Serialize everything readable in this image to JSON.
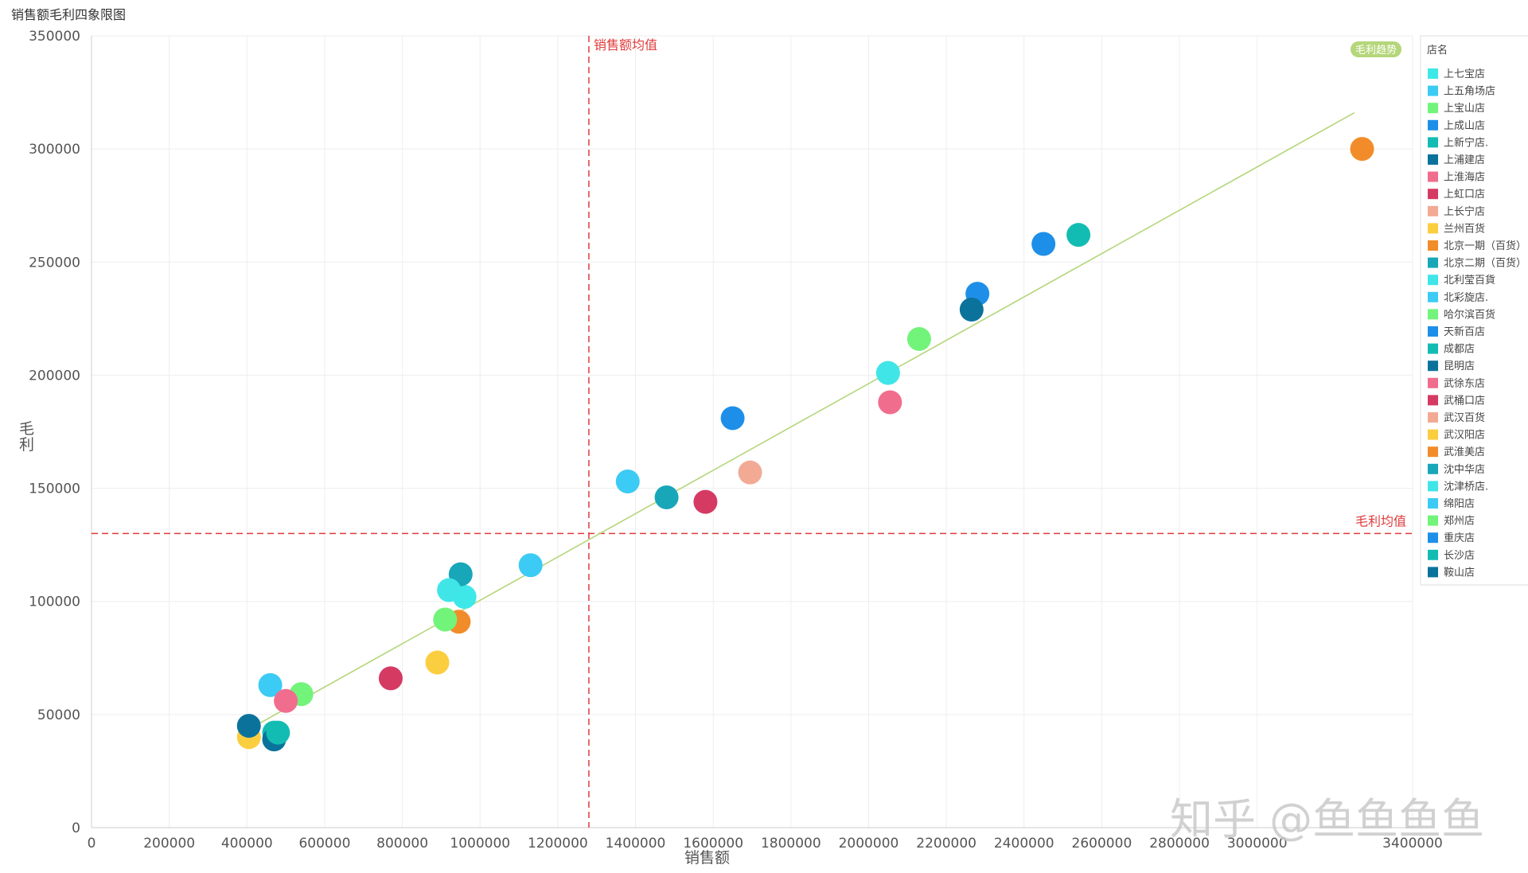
{
  "chart_data": {
    "type": "scatter",
    "title": "销售额毛利四象限图",
    "xlabel": "销售额",
    "ylabel": "毛利",
    "xlim": [
      0,
      3400000
    ],
    "ylim": [
      0,
      350000
    ],
    "x_ticks": [
      "0",
      "200000",
      "400000",
      "600000",
      "800000",
      "1000000",
      "1200000",
      "1400000",
      "1600000",
      "1800000",
      "2000000",
      "2200000",
      "2400000",
      "2600000",
      "2800000",
      "3000000",
      "3400000"
    ],
    "x_tick_values": [
      0,
      200000,
      400000,
      600000,
      800000,
      1000000,
      1200000,
      1400000,
      1600000,
      1800000,
      2000000,
      2200000,
      2400000,
      2600000,
      2800000,
      3000000,
      3400000
    ],
    "y_ticks": [
      "0",
      "50000",
      "100000",
      "150000",
      "200000",
      "250000",
      "300000",
      "350000"
    ],
    "y_tick_values": [
      0,
      50000,
      100000,
      150000,
      200000,
      250000,
      300000,
      350000
    ],
    "grid": true,
    "mean_lines": {
      "x_mean": 1280000,
      "x_mean_label": "销售额均值",
      "y_mean": 130000,
      "y_mean_label": "毛利均值",
      "color": "#e03b3b"
    },
    "trend": {
      "label": "毛利趋势",
      "color": "#b5d67a",
      "x": [
        400000,
        3250000
      ],
      "y": [
        43000,
        316000
      ]
    },
    "legend": {
      "title": "店名",
      "position": "right"
    },
    "series": [
      {
        "name": "上七宝店",
        "color": "#3ee8e8",
        "points": [
          [
            960000,
            102000
          ]
        ]
      },
      {
        "name": "上五角场店",
        "color": "#3ccbf5",
        "points": [
          [
            460000,
            63000
          ]
        ]
      },
      {
        "name": "上宝山店",
        "color": "#72f47a",
        "points": [
          [
            540000,
            59000
          ]
        ]
      },
      {
        "name": "上成山店",
        "color": "#1e8fe8",
        "points": [
          [
            2280000,
            236000
          ]
        ]
      },
      {
        "name": "上新宁店.",
        "color": "#13bcb3",
        "points": [
          [
            470000,
            42000
          ]
        ]
      },
      {
        "name": "上浦建店",
        "color": "#0b739b",
        "points": [
          [
            2265000,
            229000
          ]
        ]
      },
      {
        "name": "上淮海店",
        "color": "#f16d8e",
        "points": [
          [
            2055000,
            188000
          ]
        ]
      },
      {
        "name": "上虹口店",
        "color": "#d53a63",
        "points": [
          [
            770000,
            66000
          ]
        ]
      },
      {
        "name": "上长宁店",
        "color": "#f2aa95",
        "points": [
          [
            1695000,
            157000
          ]
        ]
      },
      {
        "name": "兰州百货",
        "color": "#fbce3f",
        "points": [
          [
            890000,
            73000
          ]
        ]
      },
      {
        "name": "北京一期（百货）",
        "color": "#f28c2a",
        "points": [
          [
            3270000,
            300000
          ]
        ]
      },
      {
        "name": "北京二期（百货）",
        "color": "#18a6b9",
        "points": [
          [
            950000,
            112000
          ]
        ]
      },
      {
        "name": "北利莹百貨",
        "color": "#40e5e8",
        "points": [
          [
            2050000,
            201000
          ]
        ]
      },
      {
        "name": "北彩旋店.",
        "color": "#3ccbf5",
        "points": [
          [
            1380000,
            153000
          ]
        ]
      },
      {
        "name": "哈尔滨百货",
        "color": "#72f47a",
        "points": [
          [
            2130000,
            216000
          ]
        ]
      },
      {
        "name": "天新百店",
        "color": "#1e8fe8",
        "points": [
          [
            1650000,
            181000
          ]
        ]
      },
      {
        "name": "成都店",
        "color": "#13bcb3",
        "points": [
          [
            2540000,
            262000
          ]
        ]
      },
      {
        "name": "昆明店",
        "color": "#0b739b",
        "points": [
          [
            470000,
            39000
          ]
        ]
      },
      {
        "name": "武徐东店",
        "color": "#f16d8e",
        "points": [
          [
            500000,
            56000
          ]
        ]
      },
      {
        "name": "武桶口店",
        "color": "#d53a63",
        "points": [
          [
            1580000,
            144000
          ]
        ]
      },
      {
        "name": "武汉百货",
        "color": "#f2aa95",
        "points": []
      },
      {
        "name": "武汉阳店",
        "color": "#fbce3f",
        "points": [
          [
            405000,
            40000
          ]
        ]
      },
      {
        "name": "武淮美店",
        "color": "#f28c2a",
        "points": [
          [
            945000,
            91000
          ]
        ]
      },
      {
        "name": "沈中华店",
        "color": "#18a6b9",
        "points": [
          [
            1480000,
            146000
          ]
        ]
      },
      {
        "name": "沈津桥店.",
        "color": "#40e5e8",
        "points": [
          [
            920000,
            105000
          ]
        ]
      },
      {
        "name": "绵阳店",
        "color": "#3ccbf5",
        "points": [
          [
            1130000,
            116000
          ]
        ]
      },
      {
        "name": "郑州店",
        "color": "#72f47a",
        "points": [
          [
            910000,
            92000
          ]
        ]
      },
      {
        "name": "重庆店",
        "color": "#1e8fe8",
        "points": [
          [
            2450000,
            258000
          ]
        ]
      },
      {
        "name": "长沙店",
        "color": "#13bcb3",
        "points": [
          [
            480000,
            42000
          ]
        ]
      },
      {
        "name": "鞍山店",
        "color": "#0b739b",
        "points": [
          [
            405000,
            45000
          ]
        ]
      }
    ]
  },
  "watermark": "知乎 @鱼鱼鱼鱼"
}
